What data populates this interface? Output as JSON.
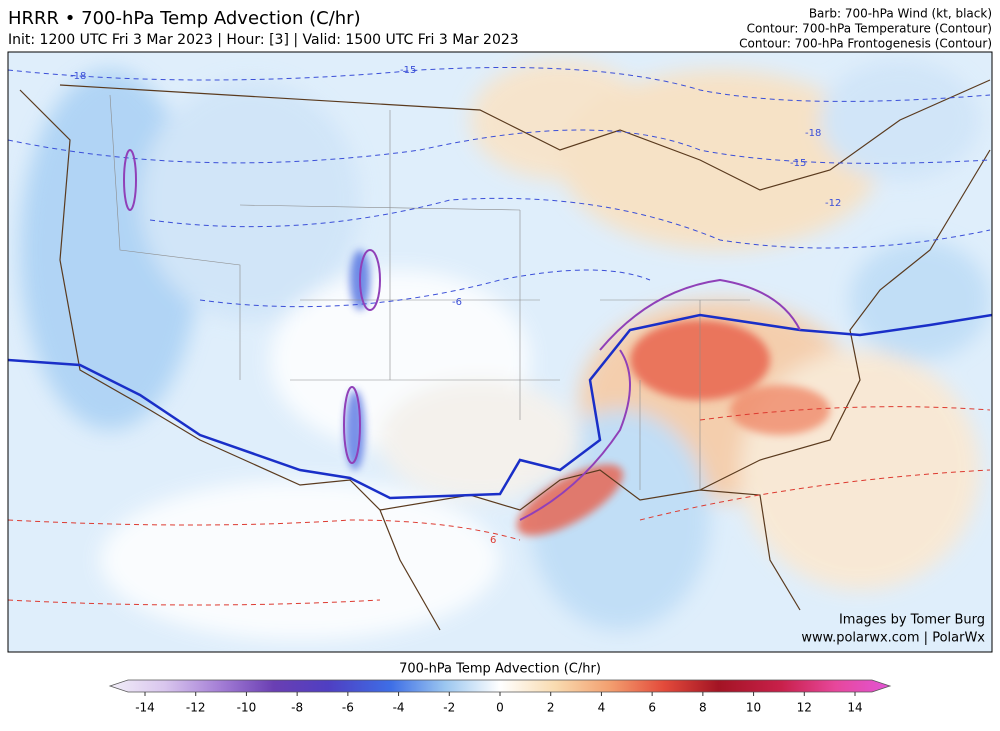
{
  "header": {
    "title": "HRRR • 700-hPa Temp Advection (C/hr)",
    "subtitle": "Init: 1200 UTC Fri 3 Mar 2023 | Hour: [3] | Valid: 1500 UTC Fri 3 Mar 2023"
  },
  "legend": [
    "Barb: 700-hPa Wind (kt, black)",
    "Contour: 700-hPa Temperature (Contour)",
    "Contour: 700-hPa Frontogenesis (Contour)"
  ],
  "map": {
    "contour_labels": [
      "-18",
      "-15",
      "-18",
      "-15",
      "-12",
      "-6",
      "6"
    ],
    "credits": [
      "Images by Tomer Burg",
      "www.polarwx.com | PolarWx"
    ]
  },
  "colorbar": {
    "title": "700-hPa Temp Advection (C/hr)",
    "ticks": [
      -14,
      -12,
      -10,
      -8,
      -6,
      -4,
      -2,
      0,
      2,
      4,
      6,
      8,
      10,
      12,
      14
    ]
  }
}
